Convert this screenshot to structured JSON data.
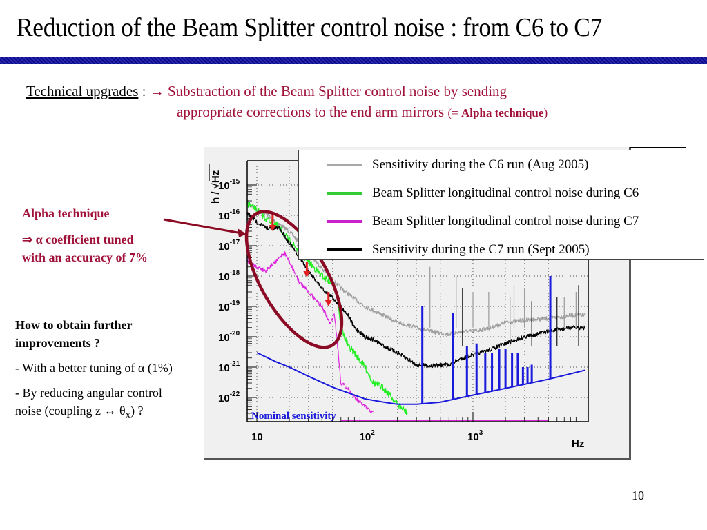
{
  "slide": {
    "title": "Reduction of the Beam Splitter control noise : from C6 to C7",
    "page_number": "10"
  },
  "upgrades": {
    "label": "Technical upgrades",
    "separator": " : ",
    "arrow": "→",
    "line1": " Substraction of the Beam Splitter control noise by sending",
    "line2": "appropriate corrections to the end arm mirrors ",
    "paren_open": "(= ",
    "emph": "Alpha technique",
    "paren_close": ")"
  },
  "alpha_note": {
    "heading": "Alpha technique",
    "line1": "⇒ α coefficient tuned",
    "line2": "with an accuracy of 7%"
  },
  "further": {
    "heading_line1": "How to obtain further",
    "heading_line2": "improvements ?",
    "item1": "- With a better tuning of α (1%)",
    "item2_line1": "- By reducing angular control",
    "item2_line2_pre": "noise (coupling z ↔ θ",
    "item2_sub": "x",
    "item2_line2_post": ") ?"
  },
  "colors": {
    "accent_red": "#a0123a",
    "c6_sensitivity": "#a0a0a0",
    "bs_noise_c6": "#22ee22",
    "bs_noise_c7": "#dd22dd",
    "c7_sensitivity": "#000000",
    "nominal": "#1a1adc",
    "highlight_ellipse": "#8b0a24",
    "arrow": "#e02020"
  },
  "chart_data": {
    "type": "line",
    "title": "",
    "xlabel": "Hz",
    "ylabel": "h / √Hz",
    "xscale": "log",
    "yscale": "log",
    "xlim": [
      8.1,
      11000
    ],
    "ylim": [
      3e-23,
      3e-15
    ],
    "grid": true,
    "legend_position": "top-right",
    "x_ticks": [
      {
        "value": 10,
        "label": "10",
        "exp": ""
      },
      {
        "value": 100,
        "label": "10",
        "exp": "2"
      },
      {
        "value": 1000,
        "label": "10",
        "exp": "3"
      }
    ],
    "y_ticks": [
      {
        "value": 1e-15,
        "label": "10",
        "exp": "-15"
      },
      {
        "value": 1e-16,
        "label": "10",
        "exp": "-16"
      },
      {
        "value": 1e-17,
        "label": "10",
        "exp": "-17"
      },
      {
        "value": 1e-18,
        "label": "10",
        "exp": "-18"
      },
      {
        "value": 1e-19,
        "label": "10",
        "exp": "-19"
      },
      {
        "value": 1e-20,
        "label": "10",
        "exp": "-20"
      },
      {
        "value": 1e-21,
        "label": "10",
        "exp": "-21"
      },
      {
        "value": 1e-22,
        "label": "10",
        "exp": "-22"
      }
    ],
    "series": [
      {
        "name": "Sensitivity during the C6 run (Aug 2005)",
        "key": "c6_sensitivity",
        "x": [
          8.1,
          10,
          12,
          15,
          20,
          25,
          30,
          40,
          50,
          60,
          80,
          100,
          150,
          200,
          300,
          400,
          600,
          800,
          1000,
          1500,
          2000,
          3000,
          5000,
          8000,
          11000
        ],
        "y": [
          3e-16,
          1.5e-16,
          1.2e-16,
          6e-17,
          3e-17,
          1.2e-17,
          6e-18,
          1.8e-18,
          8e-19,
          4e-19,
          1.8e-19,
          1e-19,
          5e-20,
          3e-20,
          2e-20,
          1.5e-20,
          1.2e-20,
          1.5e-20,
          1.5e-20,
          2e-20,
          3e-20,
          3.5e-20,
          4e-20,
          5e-20,
          5e-20
        ]
      },
      {
        "name": "Beam Splitter longitudinal control noise during C6",
        "key": "bs_noise_c6",
        "x": [
          8.1,
          10,
          12,
          15,
          20,
          25,
          30,
          40,
          50,
          55,
          60,
          70,
          80,
          100,
          120,
          150,
          200,
          250
        ],
        "y": [
          2.5e-16,
          1.5e-16,
          8e-17,
          5e-17,
          1.5e-17,
          6e-18,
          3e-18,
          1e-18,
          6e-19,
          3e-19,
          2e-20,
          5e-21,
          3e-21,
          1e-21,
          3e-22,
          2e-22,
          6e-23,
          3e-23
        ]
      },
      {
        "name": "Beam Splitter longitudinal control noise during C7",
        "key": "bs_noise_c7",
        "x": [
          8.1,
          10,
          12,
          15,
          18,
          20,
          25,
          30,
          40,
          48,
          52,
          55,
          60,
          70,
          80,
          100,
          120
        ],
        "y": [
          3e-18,
          2e-18,
          1.5e-18,
          3e-18,
          6e-18,
          3e-18,
          6e-19,
          3e-19,
          1e-19,
          2.5e-20,
          6e-20,
          1e-20,
          3e-22,
          2e-22,
          1e-22,
          5e-23,
          3e-23
        ]
      },
      {
        "name": "Sensitivity during the C7 run (Sept 2005)",
        "key": "c7_sensitivity",
        "x": [
          8.1,
          10,
          12,
          14,
          16,
          20,
          25,
          30,
          40,
          50,
          60,
          70,
          80,
          100,
          120,
          150,
          200,
          300,
          400,
          600,
          800,
          1000,
          1500,
          2000,
          3000,
          5000,
          8000,
          11000
        ],
        "y": [
          1.2e-16,
          6e-17,
          4e-17,
          3.5e-17,
          4e-17,
          1.2e-17,
          4e-18,
          1.5e-18,
          4e-19,
          2e-19,
          1e-19,
          5e-20,
          2e-20,
          1e-20,
          8e-21,
          5e-21,
          3e-21,
          1.2e-21,
          1.1e-21,
          1.2e-21,
          2e-21,
          2.5e-21,
          4e-21,
          6e-21,
          1e-20,
          1.5e-20,
          2e-20,
          2e-20
        ]
      },
      {
        "name": "Nominal sensitivity",
        "key": "nominal",
        "x": [
          10,
          15,
          20,
          30,
          50,
          80,
          100,
          150,
          200,
          300,
          500,
          1000,
          2000,
          5000,
          11000
        ],
        "y": [
          3e-21,
          1.5e-21,
          1e-21,
          5e-22,
          2.2e-22,
          1.2e-22,
          9e-23,
          7e-23,
          6e-23,
          6e-23,
          7e-23,
          1.2e-22,
          2e-22,
          4e-22,
          8e-22
        ]
      }
    ],
    "nominal_spikes": [
      {
        "x": 340,
        "y": 1e-19
      },
      {
        "x": 650,
        "y": 6e-20
      },
      {
        "x": 880,
        "y": 5e-21
      },
      {
        "x": 1080,
        "y": 6e-21
      },
      {
        "x": 1300,
        "y": 3e-21
      },
      {
        "x": 1500,
        "y": 3e-21
      },
      {
        "x": 1750,
        "y": 4e-21
      },
      {
        "x": 2000,
        "y": 4e-21
      },
      {
        "x": 2300,
        "y": 3e-21
      },
      {
        "x": 2600,
        "y": 3e-21
      },
      {
        "x": 2900,
        "y": 1e-21
      },
      {
        "x": 3200,
        "y": 1e-21
      },
      {
        "x": 3500,
        "y": 1.2e-21
      },
      {
        "x": 5200,
        "y": 1e-18
      }
    ],
    "annotations": [
      {
        "text": "Nominal sensitivity",
        "key": "nominal"
      }
    ],
    "reduction_arrows": [
      {
        "x": 14,
        "y_from": 1e-16,
        "y_to": 3e-17
      },
      {
        "x": 29,
        "y_from": 3e-18,
        "y_to": 9e-19
      },
      {
        "x": 46,
        "y_from": 3e-19,
        "y_to": 1e-19
      }
    ]
  }
}
